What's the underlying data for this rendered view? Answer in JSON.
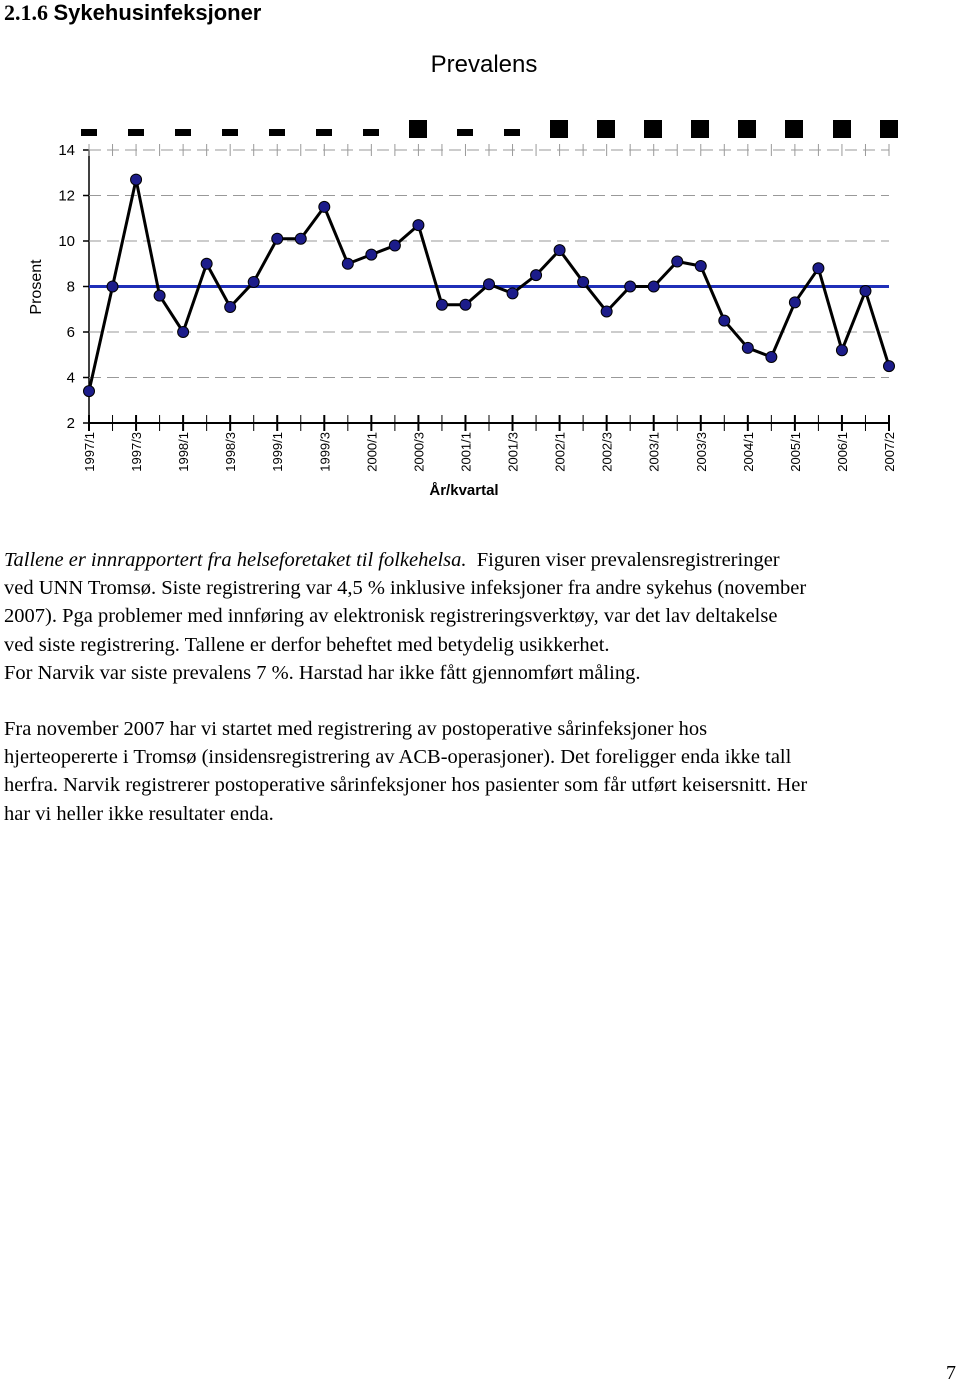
{
  "heading": {
    "number": "2.1.6",
    "title": "Sykehusinfeksjoner"
  },
  "chart_data": {
    "type": "line",
    "title": "Prevalens",
    "y_label": "Prosent",
    "x_label": "År/kvartal",
    "categories": [
      "1997/1",
      null,
      "1997/3",
      null,
      "1998/1",
      null,
      "1998/3",
      null,
      "1999/1",
      null,
      "1999/3",
      null,
      "2000/1",
      null,
      "2000/3",
      null,
      "2001/1",
      null,
      "2001/3",
      null,
      "2002/1",
      null,
      "2002/3",
      null,
      "2003/1",
      null,
      "2003/3",
      null,
      "2004/1",
      null,
      "2005/1",
      null,
      "2006/1",
      null,
      "2007/2"
    ],
    "values": [
      3.4,
      8.0,
      12.7,
      7.6,
      6.0,
      9.0,
      7.1,
      8.2,
      10.1,
      10.1,
      11.5,
      9.0,
      9.4,
      9.8,
      10.7,
      7.2,
      7.2,
      8.1,
      7.7,
      8.5,
      9.6,
      8.2,
      6.9,
      8.0,
      8.0,
      9.1,
      8.9,
      6.5,
      5.3,
      4.9,
      7.3,
      8.8,
      5.2,
      7.8,
      4.5
    ],
    "color": "#000000",
    "marker_color": "#1c1c8a",
    "reference_line": {
      "value": 8,
      "color": "#1f2fb8"
    },
    "ylim": [
      2,
      14
    ],
    "yticks": [
      2,
      4,
      6,
      8,
      10,
      12,
      14
    ],
    "grid": true
  },
  "text": {
    "source": "Tallene er innrapportert fra helseforetaket til folkehelsa.",
    "lines": [
      "Figuren viser prevalensregistreringer",
      "ved UNN Tromsø. Siste registrering var 4,5 % inklusive infeksjoner fra andre sykehus (november",
      "2007). Pga problemer med innføring av elektronisk registreringsverktøy, var det lav deltakelse",
      "ved siste registrering. Tallene er derfor beheftet med betydelig usikkerhet.",
      "For Narvik var siste prevalens 7 %. Harstad har ikke fått gjennomført måling."
    ],
    "lines2": [
      "Fra november 2007 har vi startet med registrering av postoperative sårinfeksjoner hos",
      "hjerteopererte i Tromsø (insidensregistrering av ACB-operasjoner). Det foreligger enda ikke tall",
      "herfra. Narvik registrerer postoperative sårinfeksjoner hos pasienter som får utført keisersnitt. Her",
      "har vi heller ikke resultater enda."
    ]
  },
  "page_number": "7"
}
